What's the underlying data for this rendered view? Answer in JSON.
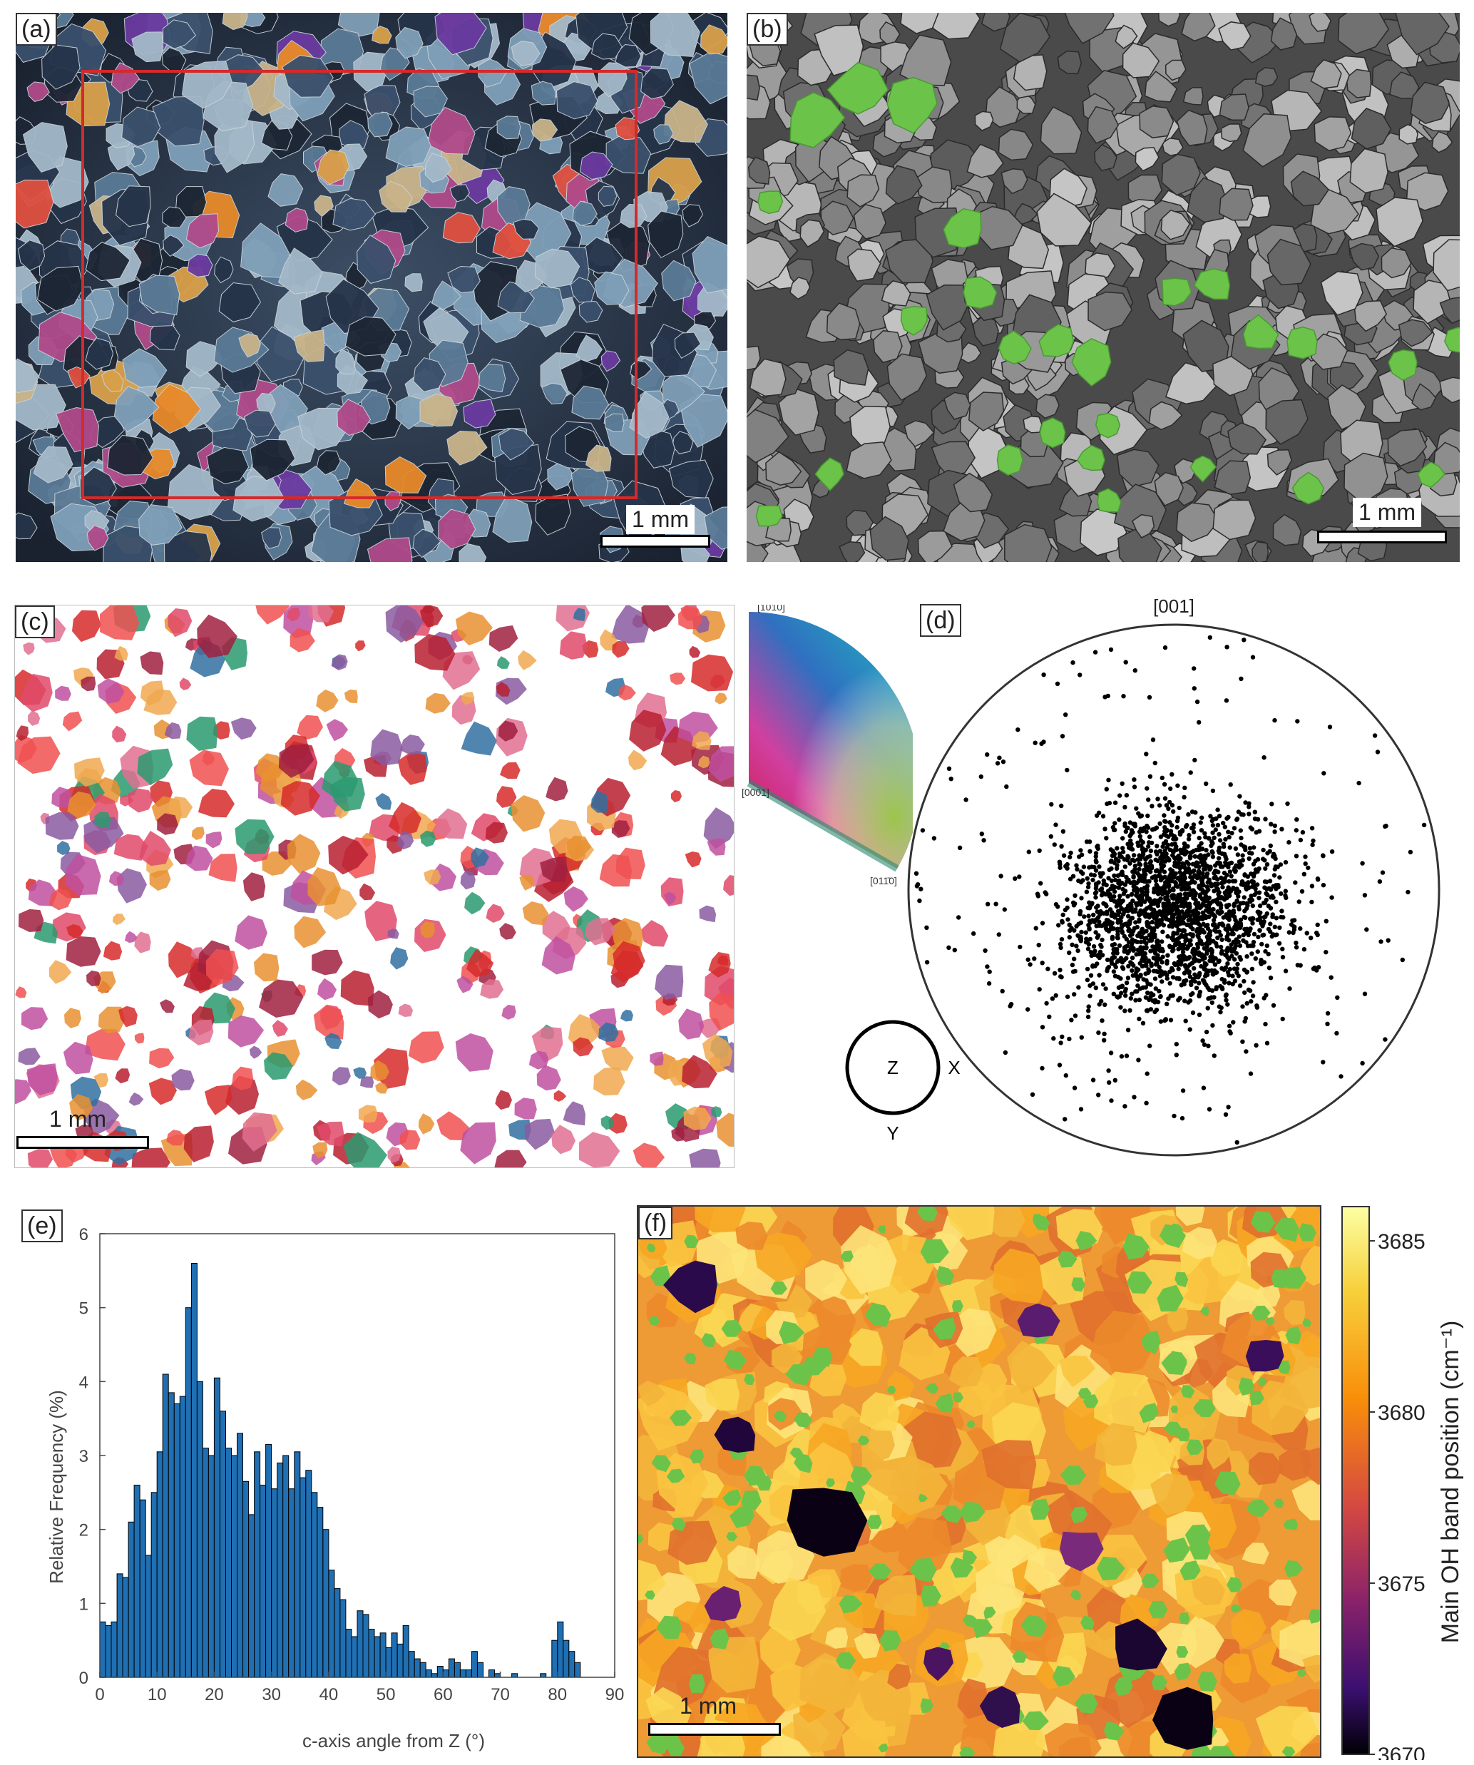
{
  "figure": {
    "panels": {
      "a": {
        "label": "(a)",
        "scale": "1 mm"
      },
      "b": {
        "label": "(b)",
        "scale": "1 mm"
      },
      "c": {
        "label": "(c)",
        "scale": "1 mm",
        "ipf_labels": {
          "top": "[1̄010]",
          "left": "[0001]",
          "right": "[011̄0]"
        }
      },
      "d": {
        "label": "(d)",
        "title": "[001]",
        "axes": {
          "center": "Z",
          "right": "X",
          "bottom": "Y"
        }
      },
      "e": {
        "label": "(e)"
      },
      "f": {
        "label": "(f)",
        "scale": "1 mm",
        "colorbar_label": "Main OH band position (cm⁻¹)",
        "colorbar_ticks": [
          "3685",
          "3680",
          "3675",
          "3670"
        ]
      }
    },
    "colors": {
      "roi_box": "#d42a2a",
      "highlight_green": "#6cc34a",
      "histogram_bar": "#1f6fb2"
    }
  },
  "chart_data": {
    "type": "bar",
    "xlabel": "c-axis angle from Z (°)",
    "ylabel": "Relative Frequency (%)",
    "xlim": [
      0,
      90
    ],
    "ylim": [
      0,
      6
    ],
    "xticks": [
      0,
      10,
      20,
      30,
      40,
      50,
      60,
      70,
      80,
      90
    ],
    "yticks": [
      0,
      1,
      2,
      3,
      4,
      5,
      6
    ],
    "bin_width": 1,
    "x": [
      0,
      1,
      2,
      3,
      4,
      5,
      6,
      7,
      8,
      9,
      10,
      11,
      12,
      13,
      14,
      15,
      16,
      17,
      18,
      19,
      20,
      21,
      22,
      23,
      24,
      25,
      26,
      27,
      28,
      29,
      30,
      31,
      32,
      33,
      34,
      35,
      36,
      37,
      38,
      39,
      40,
      41,
      42,
      43,
      44,
      45,
      46,
      47,
      48,
      49,
      50,
      51,
      52,
      53,
      54,
      55,
      56,
      57,
      58,
      59,
      60,
      61,
      62,
      63,
      64,
      65,
      66,
      67,
      68,
      69,
      70,
      71,
      72,
      73,
      74,
      75,
      76,
      77,
      78,
      79,
      80,
      81,
      82,
      83
    ],
    "values": [
      0.75,
      0.7,
      0.75,
      1.4,
      1.35,
      2.1,
      2.6,
      2.4,
      1.65,
      2.5,
      3.05,
      4.1,
      3.85,
      3.7,
      3.8,
      5.0,
      5.6,
      4.0,
      3.1,
      3.0,
      4.05,
      3.6,
      3.1,
      3.0,
      3.3,
      2.65,
      2.2,
      3.05,
      2.6,
      3.15,
      2.55,
      2.9,
      3.0,
      2.55,
      3.05,
      2.7,
      2.8,
      2.5,
      2.3,
      2.0,
      1.45,
      1.2,
      1.05,
      0.65,
      0.55,
      0.9,
      0.85,
      0.65,
      0.55,
      0.6,
      0.4,
      0.6,
      0.45,
      0.7,
      0.35,
      0.25,
      0.2,
      0.1,
      0.05,
      0.15,
      0.1,
      0.25,
      0.2,
      0.1,
      0.1,
      0.35,
      0.2,
      0.0,
      0.1,
      0.05,
      0.0,
      0.0,
      0.05,
      0.0,
      0.0,
      0.0,
      0.0,
      0.05,
      0.0,
      0.5,
      0.75,
      0.5,
      0.35,
      0.2
    ]
  }
}
